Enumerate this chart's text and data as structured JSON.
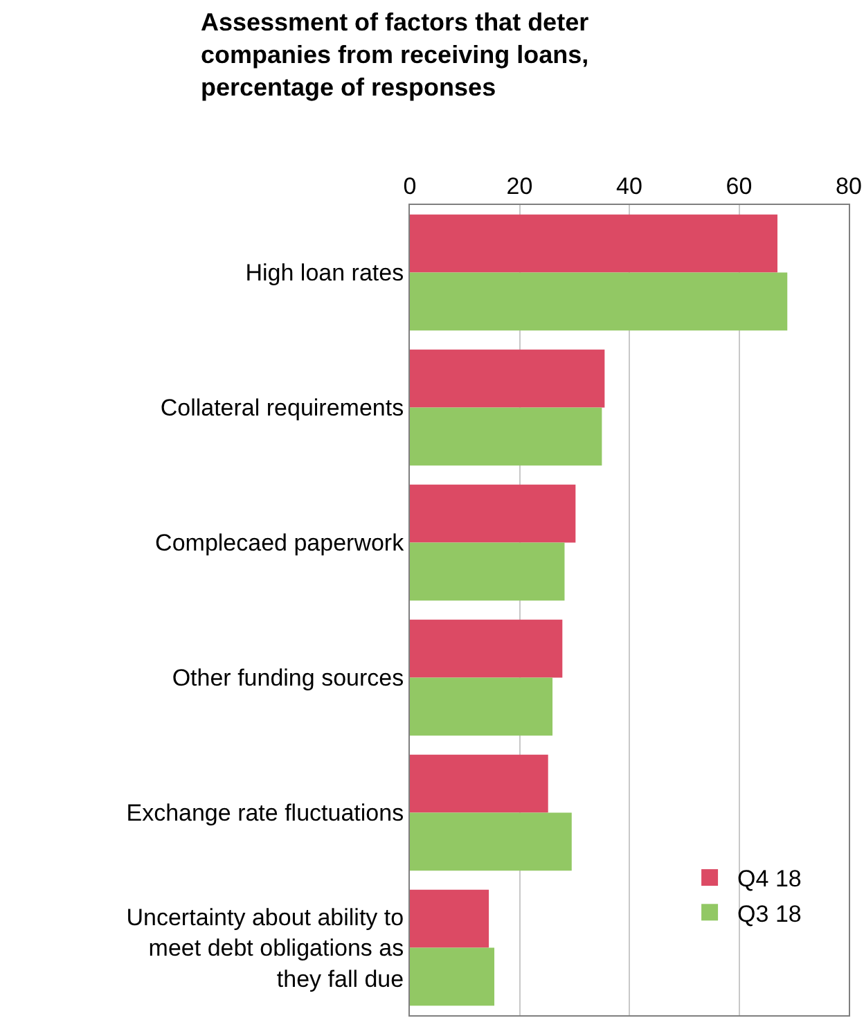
{
  "chart_data": {
    "type": "bar",
    "orientation": "horizontal",
    "title": "Assessment of factors that deter\ncompanies from receiving loans,\npercentage of responses",
    "categories": [
      "High loan rates",
      "Collateral requirements",
      "Complecaed paperwork",
      "Other funding sources",
      "Exchange rate fluctuations",
      "Uncertainty about ability to\nmeet debt obligations as\nthey fall due"
    ],
    "series": [
      {
        "name": "Q4 18",
        "color": "#dc4a64",
        "values": [
          67,
          35.5,
          30.2,
          27.8,
          25.2,
          14.4
        ]
      },
      {
        "name": "Q3 18",
        "color": "#92c864",
        "values": [
          68.8,
          35,
          28.2,
          26,
          29.5,
          15.4
        ]
      }
    ],
    "xlim": [
      0,
      80
    ],
    "xticks": [
      0,
      20,
      40,
      60,
      80
    ],
    "grid": "x",
    "legend": "bottom right"
  }
}
